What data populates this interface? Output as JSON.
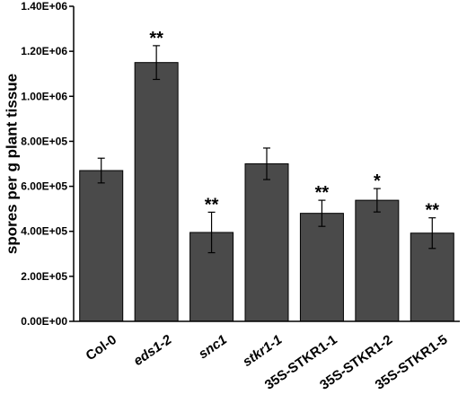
{
  "chart_data": {
    "type": "bar",
    "ylabel": "spores per g plant tissue",
    "ylim": [
      0,
      1400000
    ],
    "yticks": [
      0,
      200000,
      400000,
      600000,
      800000,
      1000000,
      1200000,
      1400000
    ],
    "ytick_labels": [
      "0.00E+00",
      "2.00E+05",
      "4.00E+05",
      "6.00E+05",
      "8.00E+05",
      "1.00E+06",
      "1.20E+06",
      "1.40E+06"
    ],
    "categories": [
      "Col-0",
      "eds1-2",
      "snc1",
      "stkr1-1",
      "35S-STKR1-1",
      "35S-STKR1-2",
      "35S-STKR1-5"
    ],
    "category_italic": [
      false,
      true,
      true,
      true,
      false,
      false,
      false
    ],
    "values": [
      670000,
      1150000,
      395000,
      700000,
      480000,
      538000,
      392000
    ],
    "errors": [
      55000,
      75000,
      90000,
      70000,
      58000,
      52000,
      68000
    ],
    "significance": [
      "",
      "**",
      "**",
      "",
      "**",
      "*",
      "**"
    ],
    "bar_color": "#4a4a4a",
    "grid": false,
    "legend": "none"
  }
}
